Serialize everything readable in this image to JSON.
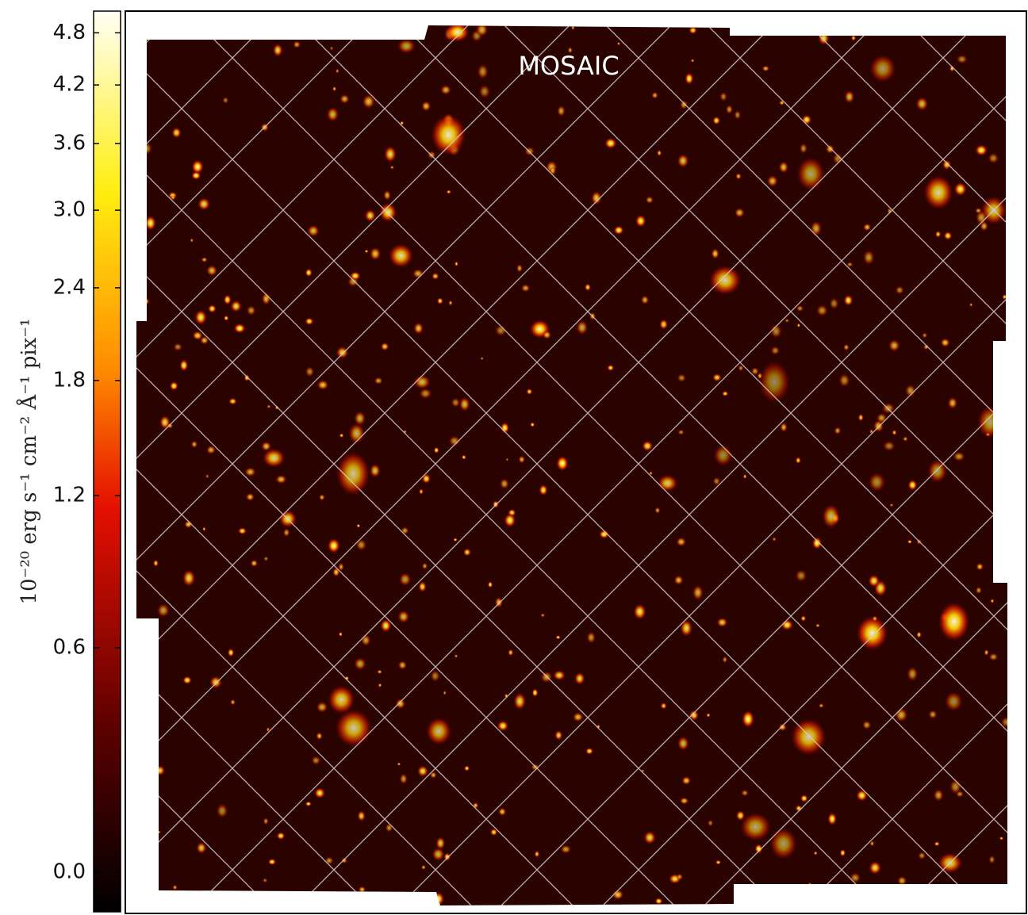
{
  "chart_data": {
    "type": "image",
    "title": "MOSAIC",
    "colorbar_label": "10⁻²⁰ erg s⁻¹ cm⁻² Å⁻¹ pix⁻¹",
    "colorbar_scale": "log1p",
    "clim": [
      -0.08,
      5.07
    ],
    "colorbar_ticks": [
      {
        "value": 0,
        "label": "0.0"
      },
      0.6,
      1.2,
      1.8,
      2.4,
      {
        "value": 3,
        "label": "3.0"
      },
      3.6,
      4.2,
      4.8
    ]
  }
}
